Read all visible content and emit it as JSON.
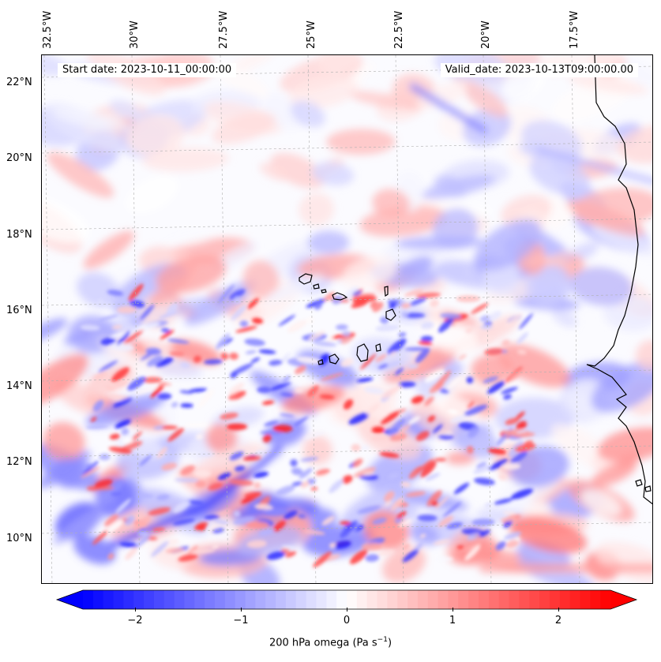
{
  "map": {
    "start_date": "Start date: 2023-10-11_00:00:00",
    "valid_date": "Valid_date: 2023-10-13T09:00:00.00",
    "lat_labels": [
      "22°N",
      "20°N",
      "18°N",
      "16°N",
      "14°N",
      "12°N",
      "10°N"
    ],
    "lon_labels": [
      "32.5°W",
      "30°W",
      "27.5°W",
      "25°W",
      "22.5°W",
      "20°W",
      "17.5°W"
    ],
    "colorbar": {
      "ticks": [
        "−2",
        "−1",
        "0",
        "1",
        "2"
      ],
      "tick_values": [
        -2,
        -1,
        0,
        1,
        2
      ],
      "range": [
        -2.6,
        2.6
      ],
      "label": "200 hPa omega (Pa s",
      "label_sup": "−1",
      "label_end": ")",
      "min_color": "#0000ff",
      "mid_color": "#ffffff",
      "max_color": "#ff0000",
      "extend": "both"
    },
    "colors": {
      "coastline": "#000000",
      "grid": "#b0b0b0"
    }
  }
}
